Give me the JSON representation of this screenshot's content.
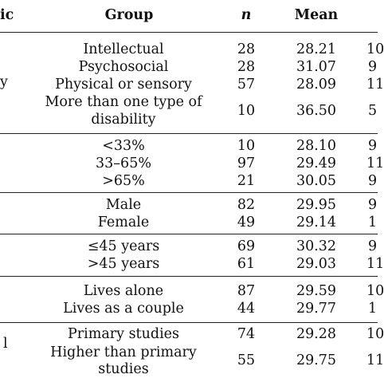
{
  "header": {
    "col0": "ic",
    "group": "Group",
    "n": "n",
    "mean": "Mean"
  },
  "sections": [
    {
      "edge": "y",
      "rows": [
        {
          "group": "Intellectual",
          "n": "28",
          "mean": "28.21",
          "sd": "10"
        },
        {
          "group": "Psychosocial",
          "n": "28",
          "mean": "31.07",
          "sd": "9"
        },
        {
          "group": "Physical or sensory",
          "n": "57",
          "mean": "28.09",
          "sd": "11"
        },
        {
          "group": "More than one type of",
          "group2": "disability",
          "n": "10",
          "mean": "36.50",
          "sd": "5"
        }
      ]
    },
    {
      "edge": "",
      "rows": [
        {
          "group": "<33%",
          "n": "10",
          "mean": "28.10",
          "sd": "9"
        },
        {
          "group": "33–65%",
          "n": "97",
          "mean": "29.49",
          "sd": "11"
        },
        {
          "group": ">65%",
          "n": "21",
          "mean": "30.05",
          "sd": "9"
        }
      ]
    },
    {
      "edge": "",
      "rows": [
        {
          "group": "Male",
          "n": "82",
          "mean": "29.95",
          "sd": "9"
        },
        {
          "group": "Female",
          "n": "49",
          "mean": "29.14",
          "sd": "1"
        }
      ]
    },
    {
      "edge": "",
      "rows": [
        {
          "group": "≤45 years",
          "n": "69",
          "mean": "30.32",
          "sd": "9"
        },
        {
          "group": ">45 years",
          "n": "61",
          "mean": "29.03",
          "sd": "11"
        }
      ]
    },
    {
      "edge": "",
      "rows": [
        {
          "group": "Lives alone",
          "n": "87",
          "mean": "29.59",
          "sd": "10"
        },
        {
          "group": "Lives as a couple",
          "n": "44",
          "mean": "29.77",
          "sd": "1"
        }
      ]
    },
    {
      "edge": "l",
      "rows": [
        {
          "group": "Primary studies",
          "n": "74",
          "mean": "29.28",
          "sd": "10"
        },
        {
          "group": "Higher than primary",
          "group2": "studies",
          "n": "55",
          "mean": "29.75",
          "sd": "11"
        }
      ]
    }
  ]
}
